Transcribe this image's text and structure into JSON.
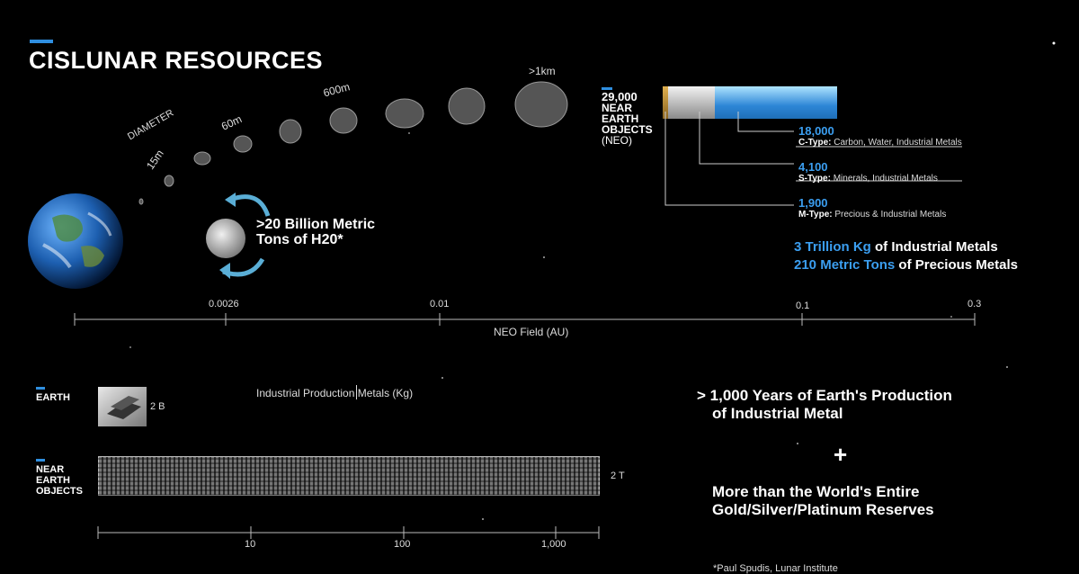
{
  "title": "CISLUNAR RESOURCES",
  "diameter_label": "DIAMETER",
  "sizes": [
    "15m",
    "60m",
    "600m",
    ">1km"
  ],
  "h2o_text": ">20 Billion Metric Tons of H20*",
  "neo": {
    "count": "29,000",
    "label": "NEAR EARTH OBJECTS",
    "abbr": "(NEO)"
  },
  "neo_types": [
    {
      "count": "18,000",
      "type": "C-Type:",
      "desc": "Carbon, Water, Industrial Metals"
    },
    {
      "count": "4,100",
      "type": "S-Type:",
      "desc": "Minerals, Industrial Metals"
    },
    {
      "count": "1,900",
      "type": "M-Type:",
      "desc": "Precious & Industrial Metals"
    }
  ],
  "totals": [
    {
      "highlight": "3 Trillion Kg",
      "rest": " of Industrial Metals"
    },
    {
      "highlight": "210 Metric Tons",
      "rest": " of Precious Metals"
    }
  ],
  "field_axis": {
    "ticks": [
      "0.0026",
      "0.01",
      "0.1",
      "0.3"
    ],
    "label": "NEO Field (AU)"
  },
  "production": {
    "title": "Industrial Production Metals (Kg)",
    "earth_label": "EARTH",
    "earth_value": "2 B",
    "neo_label": "NEAR EARTH OBJECTS",
    "neo_value": "2 T",
    "ticks": [
      "10",
      "100",
      "1,000"
    ]
  },
  "claims": {
    "line1": "> 1,000 Years of Earth's Production",
    "line2": "of Industrial Metal",
    "plus": "+",
    "line3": "More than the World's Entire",
    "line4": "Gold/Silver/Platinum Reserves"
  },
  "footnote": "*Paul Spudis, Lunar Institute",
  "colors": {
    "accent": "#2f8fe0",
    "highlight": "#3b9ef0",
    "bar_blue": "#3a9ae6",
    "bar_gray": "#c8c8c8",
    "bar_gold": "#c89a3a"
  }
}
